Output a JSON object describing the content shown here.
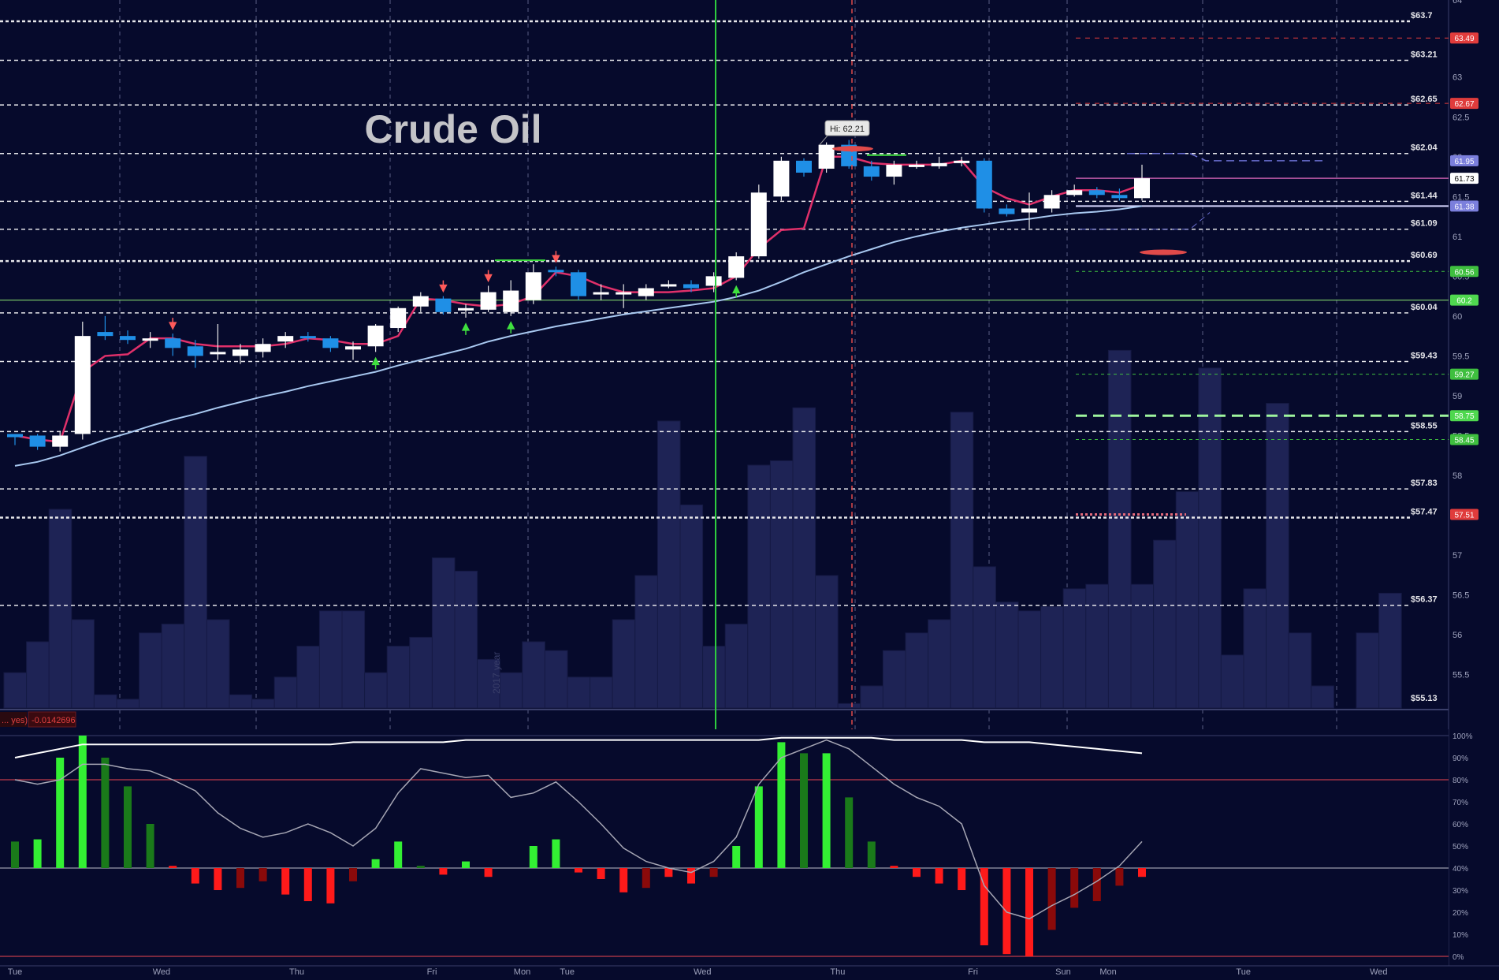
{
  "chart_data": {
    "type": "candlestick",
    "title": "Crude Oil",
    "watermark": "2017 year",
    "hi_callout": "Hi: 62.21",
    "x_labels": [
      {
        "label": "Tue",
        "bar": 0
      },
      {
        "label": "Wed",
        "bar": 6.5
      },
      {
        "label": "Thu",
        "bar": 12.5
      },
      {
        "label": "Fri",
        "bar": 18.5
      },
      {
        "label": "Mon",
        "bar": 22.5
      },
      {
        "label": "Tue",
        "bar": 24.5
      },
      {
        "label": "Wed",
        "bar": 30.5
      },
      {
        "label": "Thu",
        "bar": 36.5
      },
      {
        "label": "Fri",
        "bar": 42.5
      },
      {
        "label": "Sun",
        "bar": 46.5
      },
      {
        "label": "Mon",
        "bar": 48.5
      },
      {
        "label": "Tue",
        "bar": 54.5
      },
      {
        "label": "Wed",
        "bar": 60.5
      }
    ],
    "price_axis": {
      "min": 55.13,
      "max": 63.7,
      "ticks": [
        "63",
        "62.5",
        "62",
        "61.5",
        "61",
        "60.5",
        "60",
        "59.5",
        "59",
        "58.5",
        "58",
        "57.5",
        "57",
        "56.5",
        "56",
        "55.5"
      ]
    },
    "level_lines": [
      {
        "label": "$63.7",
        "value": 63.7,
        "style": "major"
      },
      {
        "label": "$63.21",
        "value": 63.21,
        "style": "minor"
      },
      {
        "label": "$62.65",
        "value": 62.65,
        "style": "minor"
      },
      {
        "label": "$62.04",
        "value": 62.04,
        "style": "minor"
      },
      {
        "label": "$61.44",
        "value": 61.44,
        "style": "minor"
      },
      {
        "label": "$61.09",
        "value": 61.09,
        "style": "minor"
      },
      {
        "label": "$60.69",
        "value": 60.69,
        "style": "major"
      },
      {
        "label": "$60.04",
        "value": 60.04,
        "style": "minor"
      },
      {
        "label": "$59.43",
        "value": 59.43,
        "style": "minor"
      },
      {
        "label": "$58.55",
        "value": 58.55,
        "style": "minor"
      },
      {
        "label": "$57.83",
        "value": 57.83,
        "style": "minor"
      },
      {
        "label": "$57.47",
        "value": 57.47,
        "style": "major"
      },
      {
        "label": "$56.37",
        "value": 56.37,
        "style": "minor"
      },
      {
        "label": "$55.13",
        "value": 55.13,
        "style": "none"
      }
    ],
    "price_tags": [
      {
        "label": "63.49",
        "value": 63.49,
        "color": "#e03c3c"
      },
      {
        "label": "62.67",
        "value": 62.67,
        "color": "#e03c3c"
      },
      {
        "label": "61.95",
        "value": 61.95,
        "color": "#7b7fdc"
      },
      {
        "label": "61.73",
        "value": 61.73,
        "color": "#ffffff"
      },
      {
        "label": "61.38",
        "value": 61.38,
        "color": "#7b7fdc"
      },
      {
        "label": "60.56",
        "value": 60.56,
        "color": "#3fbf3f"
      },
      {
        "label": "60.2",
        "value": 60.2,
        "color": "#4fd84f"
      },
      {
        "label": "59.27",
        "value": 59.27,
        "color": "#3fbf3f"
      },
      {
        "label": "58.75",
        "value": 58.75,
        "color": "#4fd84f"
      },
      {
        "label": "58.45",
        "value": 58.45,
        "color": "#3fbf3f"
      },
      {
        "label": "57.51",
        "value": 57.51,
        "color": "#e03c3c"
      }
    ],
    "candles": [
      [
        58.52,
        58.48,
        58.52,
        58.38
      ],
      [
        58.5,
        58.36,
        58.52,
        58.32
      ],
      [
        58.36,
        58.5,
        58.56,
        58.3
      ],
      [
        58.52,
        59.75,
        59.93,
        58.45
      ],
      [
        59.8,
        59.75,
        60.0,
        59.7
      ],
      [
        59.75,
        59.7,
        59.82,
        59.65
      ],
      [
        59.7,
        59.72,
        59.8,
        59.6
      ],
      [
        59.72,
        59.6,
        59.78,
        59.5
      ],
      [
        59.62,
        59.5,
        59.7,
        59.35
      ],
      [
        59.52,
        59.55,
        59.9,
        59.45
      ],
      [
        59.5,
        59.58,
        59.65,
        59.4
      ],
      [
        59.55,
        59.65,
        59.72,
        59.48
      ],
      [
        59.68,
        59.75,
        59.8,
        59.6
      ],
      [
        59.75,
        59.72,
        59.8,
        59.68
      ],
      [
        59.72,
        59.6,
        59.75,
        59.55
      ],
      [
        59.58,
        59.62,
        59.68,
        59.45
      ],
      [
        59.62,
        59.88,
        59.9,
        59.55
      ],
      [
        59.85,
        60.1,
        60.12,
        59.8
      ],
      [
        60.12,
        60.25,
        60.3,
        60.05
      ],
      [
        60.22,
        60.05,
        60.25,
        60.02
      ],
      [
        60.08,
        60.1,
        60.15,
        59.98
      ],
      [
        60.08,
        60.3,
        60.38,
        60.05
      ],
      [
        60.05,
        60.32,
        60.45,
        60.0
      ],
      [
        60.2,
        60.55,
        60.65,
        60.15
      ],
      [
        60.58,
        60.55,
        60.62,
        60.5
      ],
      [
        60.55,
        60.25,
        60.58,
        60.2
      ],
      [
        60.3,
        60.3,
        60.4,
        60.2
      ],
      [
        60.3,
        60.3,
        60.4,
        60.1
      ],
      [
        60.25,
        60.35,
        60.4,
        60.2
      ],
      [
        60.38,
        60.4,
        60.45,
        60.35
      ],
      [
        60.4,
        60.35,
        60.45,
        60.3
      ],
      [
        60.38,
        60.5,
        60.55,
        60.3
      ],
      [
        60.48,
        60.75,
        60.8,
        60.45
      ],
      [
        60.75,
        61.55,
        61.65,
        60.72
      ],
      [
        61.5,
        61.95,
        62.0,
        61.45
      ],
      [
        61.95,
        61.8,
        61.98,
        61.75
      ],
      [
        61.85,
        62.15,
        62.18,
        61.8
      ],
      [
        62.15,
        61.88,
        62.21,
        61.85
      ],
      [
        61.88,
        61.75,
        61.95,
        61.7
      ],
      [
        61.75,
        61.9,
        61.95,
        61.65
      ],
      [
        61.9,
        61.9,
        61.95,
        61.85
      ],
      [
        61.88,
        61.92,
        62.0,
        61.85
      ],
      [
        61.92,
        61.95,
        62.0,
        61.88
      ],
      [
        61.95,
        61.35,
        61.98,
        61.3
      ],
      [
        61.35,
        61.28,
        61.4,
        61.25
      ],
      [
        61.3,
        61.35,
        61.55,
        61.1
      ],
      [
        61.35,
        61.52,
        61.58,
        61.3
      ],
      [
        61.52,
        61.58,
        61.65,
        61.5
      ],
      [
        61.58,
        61.52,
        61.62,
        61.48
      ],
      [
        61.52,
        61.48,
        61.6,
        61.45
      ],
      [
        61.48,
        61.73,
        61.9,
        61.45
      ]
    ],
    "fast_ma": [
      58.5,
      58.45,
      58.42,
      59.3,
      59.5,
      59.52,
      59.72,
      59.72,
      59.65,
      59.62,
      59.62,
      59.62,
      59.65,
      59.72,
      59.7,
      59.65,
      59.65,
      59.75,
      60.22,
      60.2,
      60.15,
      60.12,
      60.15,
      60.25,
      60.55,
      60.5,
      60.38,
      60.3,
      60.3,
      60.3,
      60.32,
      60.35,
      60.5,
      60.85,
      61.08,
      61.1,
      62.0,
      62.0,
      61.92,
      61.9,
      61.9,
      61.9,
      61.95,
      61.62,
      61.48,
      61.4,
      61.5,
      61.58,
      61.58,
      61.55,
      61.65
    ],
    "slow_ma": [
      58.12,
      58.17,
      58.25,
      58.35,
      58.45,
      58.53,
      58.62,
      58.7,
      58.77,
      58.85,
      58.92,
      58.99,
      59.05,
      59.12,
      59.18,
      59.24,
      59.3,
      59.38,
      59.45,
      59.52,
      59.59,
      59.68,
      59.75,
      59.81,
      59.87,
      59.92,
      59.97,
      60.02,
      60.06,
      60.1,
      60.14,
      60.18,
      60.24,
      60.32,
      60.43,
      60.55,
      60.65,
      60.75,
      60.84,
      60.93,
      61.0,
      61.06,
      61.11,
      61.15,
      61.19,
      61.22,
      61.26,
      61.29,
      61.31,
      61.34,
      61.38
    ],
    "volume": [
      0.08,
      0.15,
      0.45,
      0.2,
      0.03,
      0.02,
      0.17,
      0.19,
      0.57,
      0.2,
      0.03,
      0.02,
      0.07,
      0.14,
      0.22,
      0.22,
      0.08,
      0.14,
      0.16,
      0.34,
      0.31,
      0.11,
      0.08,
      0.15,
      0.13,
      0.07,
      0.07,
      0.2,
      0.3,
      0.65,
      0.46,
      0.14,
      0.19,
      0.55,
      0.56,
      0.68,
      0.3,
      0.01,
      0.05,
      0.13,
      0.17,
      0.2,
      0.67,
      0.32,
      0.24,
      0.22,
      0.23,
      0.27,
      0.28,
      0.81,
      0.28,
      0.38,
      0.49,
      0.77,
      0.12,
      0.27,
      0.69,
      0.17,
      0.05,
      0.0,
      0.17,
      0.26
    ],
    "oscillator_label": "... yes)",
    "oscillator_value": "-0.0142696",
    "oscillator_axis": [
      "100%",
      "90%",
      "80%",
      "70%",
      "60%",
      "50%",
      "40%",
      "30%",
      "20%",
      "10%",
      "0%"
    ],
    "histogram": [
      {
        "v": 52,
        "c": "dkgreen"
      },
      {
        "v": 53,
        "c": "ltgreen"
      },
      {
        "v": 90,
        "c": "ltgreen"
      },
      {
        "v": 100,
        "c": "ltgreen"
      },
      {
        "v": 90,
        "c": "dkgreen"
      },
      {
        "v": 77,
        "c": "dkgreen"
      },
      {
        "v": 60,
        "c": "dkgreen"
      },
      {
        "v": 41,
        "c": "red"
      },
      {
        "v": 33,
        "c": "red"
      },
      {
        "v": 30,
        "c": "red"
      },
      {
        "v": 31,
        "c": "dkred"
      },
      {
        "v": 34,
        "c": "dkred"
      },
      {
        "v": 28,
        "c": "red"
      },
      {
        "v": 25,
        "c": "red"
      },
      {
        "v": 24,
        "c": "red"
      },
      {
        "v": 34,
        "c": "dkred"
      },
      {
        "v": 44,
        "c": "ltgreen"
      },
      {
        "v": 52,
        "c": "ltgreen"
      },
      {
        "v": 41,
        "c": "dkgreen"
      },
      {
        "v": 37,
        "c": "red"
      },
      {
        "v": 43,
        "c": "ltgreen"
      },
      {
        "v": 36,
        "c": "red"
      },
      {
        "v": 40,
        "c": "dkred"
      },
      {
        "v": 50,
        "c": "ltgreen"
      },
      {
        "v": 53,
        "c": "ltgreen"
      },
      {
        "v": 38,
        "c": "red"
      },
      {
        "v": 35,
        "c": "red"
      },
      {
        "v": 29,
        "c": "red"
      },
      {
        "v": 31,
        "c": "dkred"
      },
      {
        "v": 36,
        "c": "red"
      },
      {
        "v": 33,
        "c": "red"
      },
      {
        "v": 36,
        "c": "dkred"
      },
      {
        "v": 50,
        "c": "ltgreen"
      },
      {
        "v": 77,
        "c": "ltgreen"
      },
      {
        "v": 97,
        "c": "ltgreen"
      },
      {
        "v": 92,
        "c": "dkgreen"
      },
      {
        "v": 92,
        "c": "ltgreen"
      },
      {
        "v": 72,
        "c": "dkgreen"
      },
      {
        "v": 52,
        "c": "dkgreen"
      },
      {
        "v": 41,
        "c": "red"
      },
      {
        "v": 36,
        "c": "red"
      },
      {
        "v": 33,
        "c": "red"
      },
      {
        "v": 30,
        "c": "red"
      },
      {
        "v": 5,
        "c": "red"
      },
      {
        "v": 1,
        "c": "red"
      },
      {
        "v": 0,
        "c": "red"
      },
      {
        "v": 12,
        "c": "dkred"
      },
      {
        "v": 22,
        "c": "dkred"
      },
      {
        "v": 25,
        "c": "dkred"
      },
      {
        "v": 32,
        "c": "dkred"
      },
      {
        "v": 36,
        "c": "red"
      }
    ],
    "osc_white_line": [
      90,
      92,
      94,
      96,
      96,
      96,
      96,
      96,
      96,
      96,
      96,
      96,
      96,
      96,
      96,
      97,
      97,
      97,
      97,
      97,
      98,
      98,
      98,
      98,
      98,
      98,
      98,
      98,
      98,
      98,
      98,
      98,
      98,
      98,
      99,
      99,
      99,
      99,
      99,
      98,
      98,
      98,
      98,
      97,
      97,
      97,
      96,
      95,
      94,
      93,
      92
    ],
    "osc_grey_line": [
      80,
      78,
      80,
      87,
      87,
      85,
      84,
      80,
      75,
      65,
      58,
      54,
      56,
      60,
      56,
      50,
      58,
      74,
      85,
      83,
      81,
      82,
      72,
      74,
      79,
      70,
      60,
      49,
      43,
      40,
      38,
      43,
      54,
      78,
      90,
      94,
      98,
      94,
      86,
      78,
      72,
      68,
      60,
      32,
      20,
      17,
      23,
      28,
      34,
      41,
      52
    ]
  }
}
